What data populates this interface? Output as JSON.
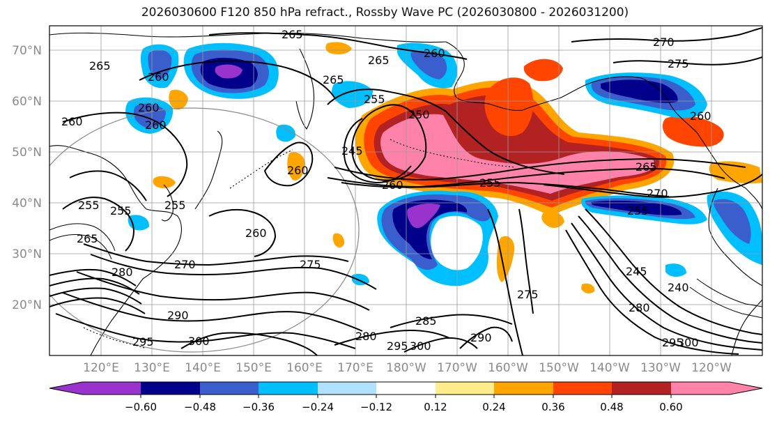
{
  "title": "2026030600 F120 850 hPa refract., Rossby Wave PC (2026030800 - 2026031200)",
  "map": {
    "lon_labels": [
      "120°E",
      "130°E",
      "140°E",
      "150°E",
      "160°E",
      "170°E",
      "180°W",
      "170°W",
      "160°W",
      "150°W",
      "140°W",
      "130°W",
      "120°W"
    ],
    "lat_labels": [
      "70°N",
      "60°N",
      "50°N",
      "40°N",
      "30°N",
      "20°N"
    ],
    "gridline_color": "#9a9a9a",
    "tick_label_color": "#8a8a8a",
    "contour_labels": [
      "265",
      "270",
      "275",
      "265",
      "260",
      "265",
      "260",
      "260",
      "260",
      "260",
      "265",
      "255",
      "250",
      "245",
      "260",
      "260",
      "255",
      "265",
      "270",
      "255",
      "255",
      "255",
      "255",
      "265",
      "270",
      "275",
      "260",
      "280",
      "290",
      "295",
      "300",
      "285",
      "280",
      "295",
      "300",
      "290",
      "275",
      "245",
      "240",
      "280",
      "295",
      "300",
      "260"
    ]
  },
  "colorbar": {
    "tick_labels": [
      "−0.60",
      "−0.48",
      "−0.36",
      "−0.24",
      "−0.12",
      "0.12",
      "0.24",
      "0.36",
      "0.48",
      "0.60"
    ],
    "colors": [
      "#9a32cd",
      "#00008b",
      "#3a5fcd",
      "#00bfff",
      "#b0e2ff",
      "#ffffff",
      "#ffec8b",
      "#ffa500",
      "#ff4500",
      "#b22222",
      "#ff82ab"
    ]
  }
}
